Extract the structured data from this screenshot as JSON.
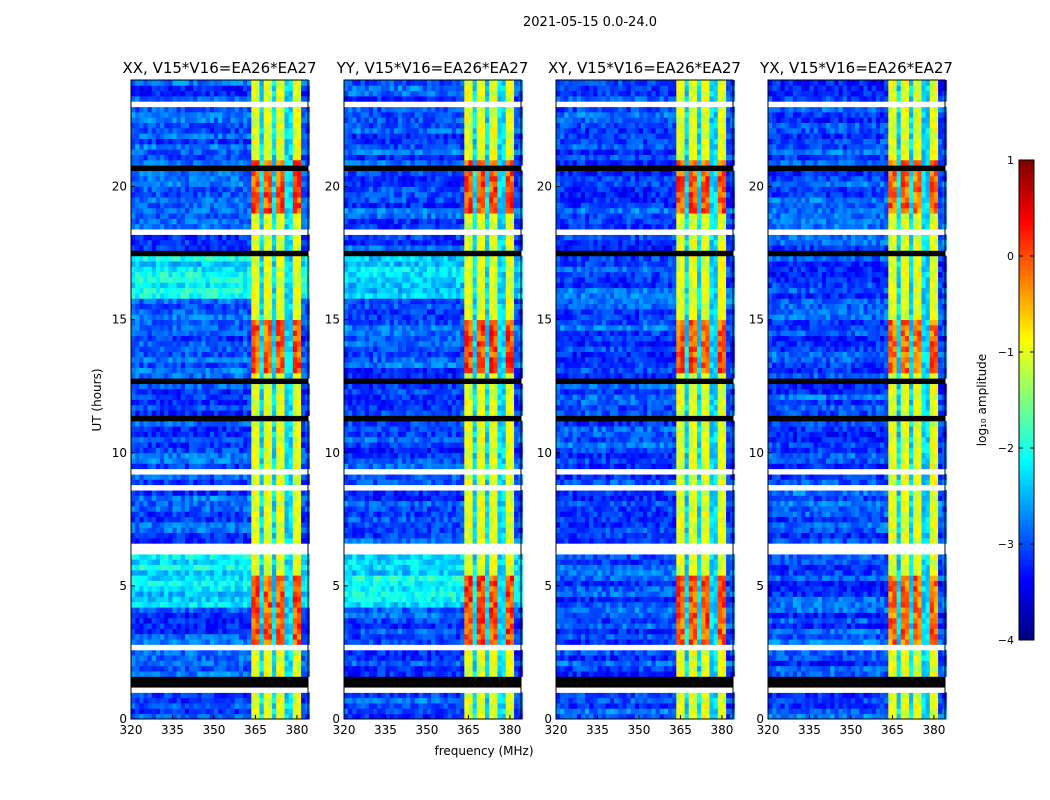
{
  "chart_data": {
    "type": "heatmap",
    "title": "2021-05-15 0.0-24.0",
    "xlabel": "frequency (MHz)",
    "ylabel": "UT (hours)",
    "xlim": [
      320,
      384
    ],
    "ylim": [
      0,
      24
    ],
    "xticks": [
      320,
      335,
      350,
      365,
      380
    ],
    "xtick_labels": [
      "320",
      "335",
      "350",
      "365",
      "380"
    ],
    "yticks": [
      0,
      5,
      10,
      15,
      20
    ],
    "ytick_labels": [
      "0",
      "5",
      "10",
      "15",
      "20"
    ],
    "panels": [
      {
        "title": "XX, V15*V16=EA26*EA27",
        "cyan_hours": [
          [
            4.2,
            6.2
          ],
          [
            15.8,
            17.3
          ]
        ],
        "strong_rfi_level": 0.4
      },
      {
        "title": "YY, V15*V16=EA26*EA27",
        "cyan_hours": [
          [
            4.2,
            6.2
          ],
          [
            15.8,
            17.3
          ]
        ],
        "strong_rfi_level": 0.5
      },
      {
        "title": "XY, V15*V16=EA26*EA27",
        "cyan_hours": [],
        "strong_rfi_level": 0.4
      },
      {
        "title": "YX, V15*V16=EA26*EA27",
        "cyan_hours": [],
        "strong_rfi_level": 0.3
      }
    ],
    "background_log10_amplitude": -3.0,
    "rfi_band_MHz": [
      363,
      381
    ],
    "rfi_gaps_MHz": [
      367.5,
      372,
      377
    ],
    "rfi_band_log10_amplitude": -1.0,
    "strong_rfi_hours": [
      [
        2.9,
        5.5
      ],
      [
        13.0,
        15.0
      ],
      [
        19.0,
        21.0
      ]
    ],
    "flagged_white_hours": [
      [
        1.1,
        1.3
      ],
      [
        1.6,
        1.7
      ],
      [
        2.7,
        2.9
      ],
      [
        6.3,
        6.6
      ],
      [
        8.7,
        8.8
      ],
      [
        9.2,
        9.3
      ],
      [
        18.2,
        18.4
      ],
      [
        23.0,
        23.1
      ]
    ],
    "flagged_black_hours": [
      [
        1.3,
        1.6
      ],
      [
        12.5,
        12.8
      ],
      [
        11.2,
        11.3
      ],
      [
        9.9,
        10.0
      ],
      [
        17.4,
        17.5
      ],
      [
        20.6,
        20.7
      ]
    ],
    "colorbar": {
      "label": "log₁₀ amplitude",
      "range": [
        -4,
        1
      ],
      "ticks": [
        1,
        0,
        -1,
        -2,
        -3,
        -4
      ],
      "tick_labels": [
        "1",
        "0",
        "−1",
        "−2",
        "−3",
        "−4"
      ]
    }
  }
}
